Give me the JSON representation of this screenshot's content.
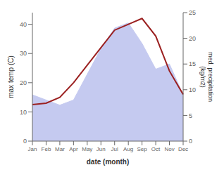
{
  "chart_data": {
    "type": "line",
    "categories": [
      "Jan",
      "Feb",
      "Mar",
      "Apr",
      "May",
      "Jun",
      "Jul",
      "Aug",
      "Sep",
      "Oct",
      "Nov",
      "Dec"
    ],
    "xlabel": "date (month)",
    "ylabel": "max temp (C)",
    "y2label": "med. precipitation\n(kg/m2)",
    "ylim": [
      0,
      44
    ],
    "yticks": [
      0,
      10,
      20,
      30,
      40
    ],
    "y2lim": [
      0,
      25
    ],
    "y2ticks": [
      0,
      5,
      10,
      15,
      20,
      25
    ],
    "grid": false,
    "series": [
      {
        "type": "area",
        "axis": "y2",
        "color": "#c5caf0",
        "values": [
          9,
          8,
          7,
          8,
          13,
          18,
          22,
          23,
          19,
          14,
          15,
          9
        ]
      },
      {
        "type": "line",
        "color": "#9b2020",
        "values": [
          12.5,
          13,
          15,
          20,
          26,
          32,
          38,
          40,
          42,
          36,
          24,
          16
        ]
      }
    ]
  }
}
